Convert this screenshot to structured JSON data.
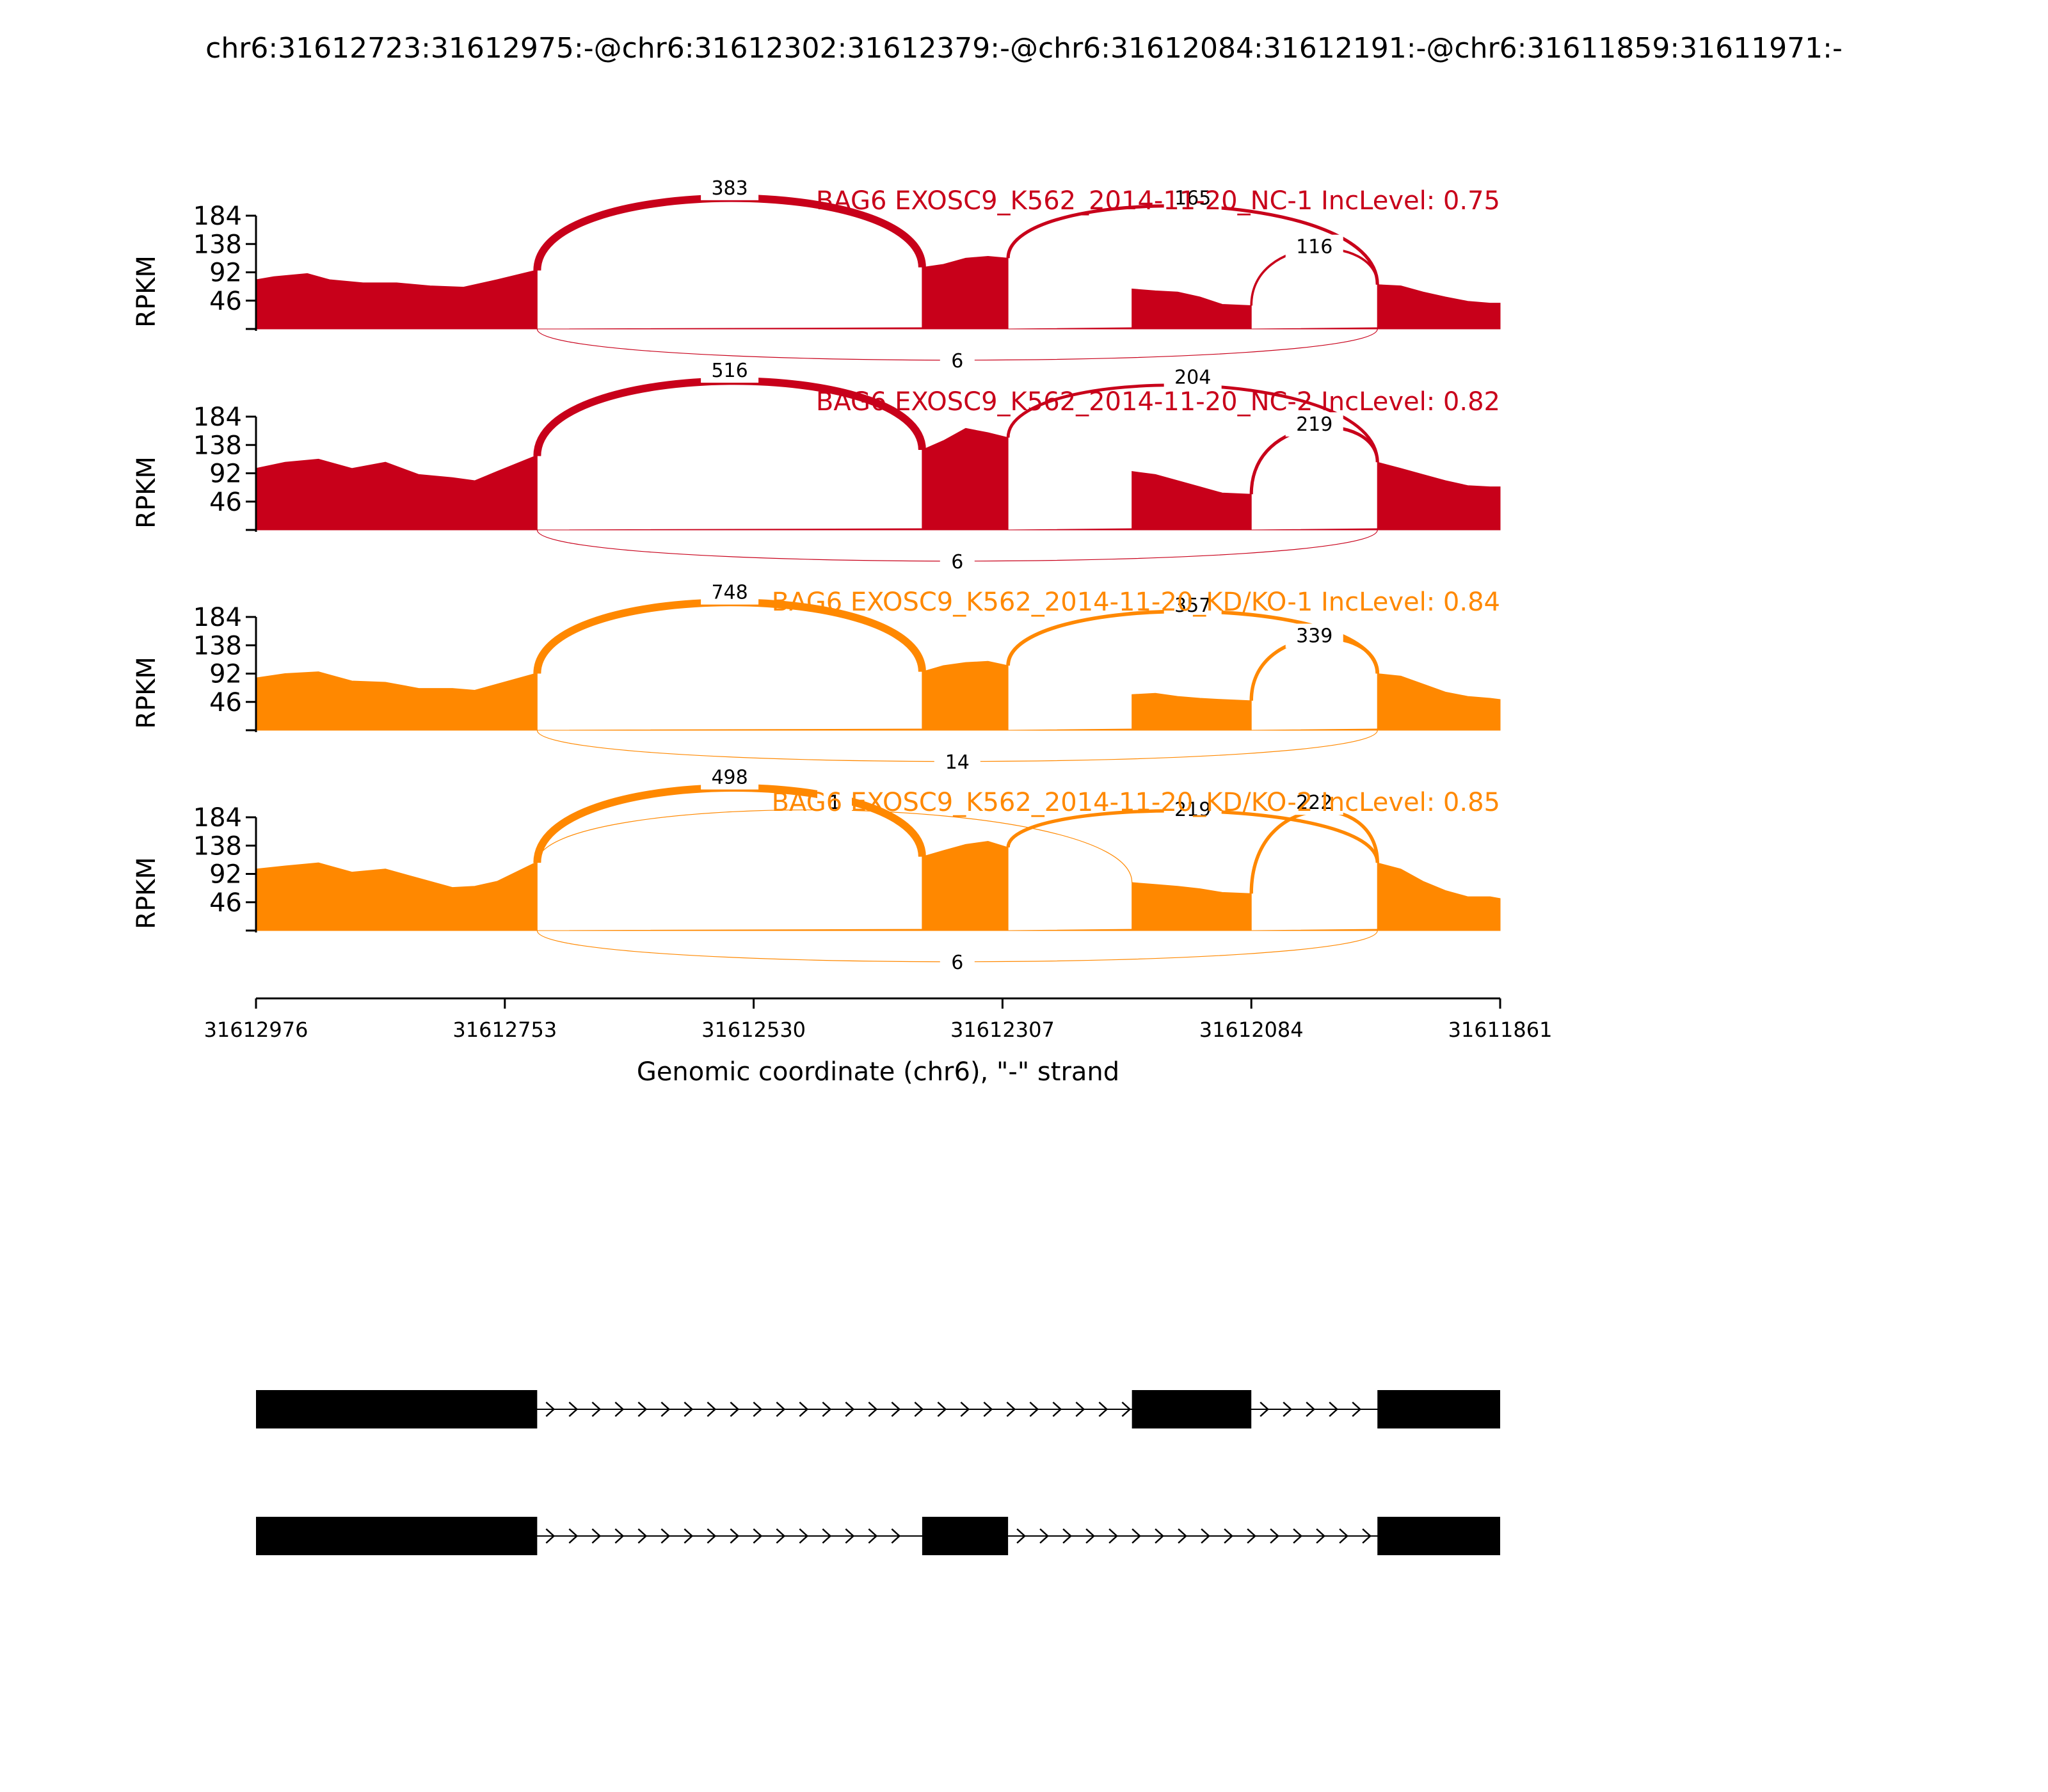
{
  "chart_data": {
    "type": "area",
    "title": "chr6:31612723:31612975:-@chr6:31612302:31612379:-@chr6:31612084:31612191:-@chr6:31611859:31611971:-",
    "ylabel": "RPKM",
    "xlabel": "Genomic coordinate (chr6), \"-\" strand",
    "x_range": [
      31612976,
      31611861
    ],
    "x_ticks": [
      "31612976",
      "31612753",
      "31612530",
      "31612307",
      "31612084",
      "31611861"
    ],
    "y_range": [
      0,
      184
    ],
    "y_ticks": [
      "184",
      "138",
      "92",
      "46"
    ],
    "grid": false,
    "exons": [
      {
        "start": 31612976,
        "end": 31612724
      },
      {
        "start": 31612379,
        "end": 31612302
      },
      {
        "start": 31612191,
        "end": 31612084
      },
      {
        "start": 31611971,
        "end": 31611861
      }
    ],
    "series": [
      {
        "name": "BAG6 EXOSC9_K562_2014-11-20_NC-1 IncLevel: 0.75",
        "color": "#c8001a",
        "levels": [
          [
            [
              31612976,
              80
            ],
            [
              31612960,
              85
            ],
            [
              31612930,
              90
            ],
            [
              31612910,
              80
            ],
            [
              31612880,
              75
            ],
            [
              31612850,
              75
            ],
            [
              31612820,
              70
            ],
            [
              31612790,
              68
            ],
            [
              31612760,
              80
            ],
            [
              31612726,
              95
            ]
          ],
          [
            [
              31612379,
              100
            ],
            [
              31612360,
              105
            ],
            [
              31612340,
              115
            ],
            [
              31612320,
              118
            ],
            [
              31612302,
              115
            ]
          ],
          [
            [
              31612191,
              65
            ],
            [
              31612170,
              62
            ],
            [
              31612150,
              60
            ],
            [
              31612130,
              52
            ],
            [
              31612110,
              40
            ],
            [
              31612084,
              38
            ]
          ],
          [
            [
              31611971,
              72
            ],
            [
              31611950,
              70
            ],
            [
              31611930,
              60
            ],
            [
              31611910,
              52
            ],
            [
              31611890,
              45
            ],
            [
              31611870,
              42
            ],
            [
              31611861,
              42
            ]
          ]
        ],
        "junctions": [
          {
            "from": 31612724,
            "to": 31612379,
            "count": "383",
            "side": "above"
          },
          {
            "from": 31612302,
            "to": 31611971,
            "count": "165",
            "side": "above"
          },
          {
            "from": 31612084,
            "to": 31611971,
            "count": "116",
            "side": "above"
          },
          {
            "from": 31612724,
            "to": 31611971,
            "count": "6",
            "side": "below"
          }
        ]
      },
      {
        "name": "BAG6 EXOSC9_K562_2014-11-20_NC-2 IncLevel: 0.82",
        "color": "#c8001a",
        "levels": [
          [
            [
              31612976,
              100
            ],
            [
              31612950,
              110
            ],
            [
              31612920,
              115
            ],
            [
              31612890,
              100
            ],
            [
              31612860,
              110
            ],
            [
              31612830,
              90
            ],
            [
              31612800,
              85
            ],
            [
              31612780,
              80
            ],
            [
              31612760,
              95
            ],
            [
              31612726,
              120
            ]
          ],
          [
            [
              31612379,
              130
            ],
            [
              31612360,
              145
            ],
            [
              31612340,
              165
            ],
            [
              31612320,
              158
            ],
            [
              31612302,
              150
            ]
          ],
          [
            [
              31612191,
              95
            ],
            [
              31612170,
              90
            ],
            [
              31612150,
              80
            ],
            [
              31612130,
              70
            ],
            [
              31612110,
              60
            ],
            [
              31612084,
              58
            ]
          ],
          [
            [
              31611971,
              110
            ],
            [
              31611950,
              100
            ],
            [
              31611930,
              90
            ],
            [
              31611910,
              80
            ],
            [
              31611890,
              72
            ],
            [
              31611870,
              70
            ],
            [
              31611861,
              70
            ]
          ]
        ],
        "junctions": [
          {
            "from": 31612724,
            "to": 31612379,
            "count": "516",
            "side": "above"
          },
          {
            "from": 31612302,
            "to": 31611971,
            "count": "204",
            "side": "above"
          },
          {
            "from": 31612084,
            "to": 31611971,
            "count": "219",
            "side": "above"
          },
          {
            "from": 31612724,
            "to": 31611971,
            "count": "6",
            "side": "below"
          }
        ]
      },
      {
        "name": "BAG6 EXOSC9_K562_2014-11-20_KD/KO-1 IncLevel: 0.84",
        "color": "#ff8800",
        "levels": [
          [
            [
              31612976,
              85
            ],
            [
              31612950,
              92
            ],
            [
              31612920,
              95
            ],
            [
              31612890,
              80
            ],
            [
              31612860,
              78
            ],
            [
              31612830,
              68
            ],
            [
              31612800,
              68
            ],
            [
              31612780,
              65
            ],
            [
              31612760,
              75
            ],
            [
              31612726,
              92
            ]
          ],
          [
            [
              31612379,
              95
            ],
            [
              31612360,
              105
            ],
            [
              31612340,
              110
            ],
            [
              31612320,
              112
            ],
            [
              31612302,
              105
            ]
          ],
          [
            [
              31612191,
              58
            ],
            [
              31612170,
              60
            ],
            [
              31612150,
              55
            ],
            [
              31612130,
              52
            ],
            [
              31612110,
              50
            ],
            [
              31612084,
              48
            ]
          ],
          [
            [
              31611971,
              92
            ],
            [
              31611950,
              88
            ],
            [
              31611930,
              75
            ],
            [
              31611910,
              62
            ],
            [
              31611890,
              55
            ],
            [
              31611870,
              52
            ],
            [
              31611861,
              50
            ]
          ]
        ],
        "junctions": [
          {
            "from": 31612724,
            "to": 31612379,
            "count": "748",
            "side": "above"
          },
          {
            "from": 31612302,
            "to": 31611971,
            "count": "357",
            "side": "above"
          },
          {
            "from": 31612084,
            "to": 31611971,
            "count": "339",
            "side": "above"
          },
          {
            "from": 31612724,
            "to": 31611971,
            "count": "14",
            "side": "below"
          }
        ]
      },
      {
        "name": "BAG6 EXOSC9_K562_2014-11-20_KD/KO-2 IncLevel: 0.85",
        "color": "#ff8800",
        "levels": [
          [
            [
              31612976,
              100
            ],
            [
              31612950,
              105
            ],
            [
              31612920,
              110
            ],
            [
              31612890,
              95
            ],
            [
              31612860,
              100
            ],
            [
              31612830,
              85
            ],
            [
              31612800,
              70
            ],
            [
              31612780,
              72
            ],
            [
              31612760,
              80
            ],
            [
              31612726,
              110
            ]
          ],
          [
            [
              31612379,
              120
            ],
            [
              31612360,
              130
            ],
            [
              31612340,
              140
            ],
            [
              31612320,
              145
            ],
            [
              31612302,
              135
            ]
          ],
          [
            [
              31612191,
              78
            ],
            [
              31612170,
              75
            ],
            [
              31612150,
              72
            ],
            [
              31612130,
              68
            ],
            [
              31612110,
              62
            ],
            [
              31612084,
              60
            ]
          ],
          [
            [
              31611971,
              110
            ],
            [
              31611950,
              100
            ],
            [
              31611930,
              80
            ],
            [
              31611910,
              65
            ],
            [
              31611890,
              55
            ],
            [
              31611870,
              55
            ],
            [
              31611861,
              52
            ]
          ]
        ],
        "junctions": [
          {
            "from": 31612724,
            "to": 31612379,
            "count": "498",
            "side": "above"
          },
          {
            "from": 31612724,
            "to": 31612191,
            "count": "1",
            "side": "above"
          },
          {
            "from": 31612302,
            "to": 31611971,
            "count": "219",
            "side": "above"
          },
          {
            "from": 31612084,
            "to": 31611971,
            "count": "222",
            "side": "above"
          },
          {
            "from": 31612724,
            "to": 31611971,
            "count": "6",
            "side": "below"
          }
        ]
      }
    ],
    "isoforms": [
      {
        "exons": [
          [
            31612976,
            31612724
          ],
          [
            31612191,
            31612084
          ],
          [
            31611971,
            31611861
          ]
        ]
      },
      {
        "exons": [
          [
            31612976,
            31612724
          ],
          [
            31612379,
            31612302
          ],
          [
            31611971,
            31611861
          ]
        ]
      }
    ]
  }
}
